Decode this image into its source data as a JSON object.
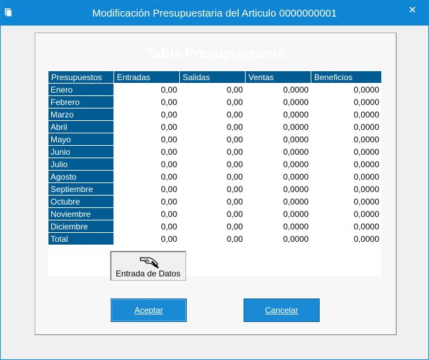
{
  "window": {
    "title": "Modificación Presupuestaria del Articulo 0000000001",
    "close_glyph": "✕",
    "accent_color": "#0e86d4"
  },
  "panel": {
    "title": "Tabla Presupuestaria"
  },
  "table": {
    "headers": [
      "Presupuestos",
      "Entradas",
      "Salidas",
      "Ventas",
      "Beneficios"
    ],
    "header_color": "#005c92",
    "rows": [
      {
        "label": "Enero",
        "entradas": "0,00",
        "salidas": "0,00",
        "ventas": "0,0000",
        "beneficios": "0,0000"
      },
      {
        "label": "Febrero",
        "entradas": "0,00",
        "salidas": "0,00",
        "ventas": "0,0000",
        "beneficios": "0,0000"
      },
      {
        "label": "Marzo",
        "entradas": "0,00",
        "salidas": "0,00",
        "ventas": "0,0000",
        "beneficios": "0,0000"
      },
      {
        "label": "Abril",
        "entradas": "0,00",
        "salidas": "0,00",
        "ventas": "0,0000",
        "beneficios": "0,0000"
      },
      {
        "label": "Mayo",
        "entradas": "0,00",
        "salidas": "0,00",
        "ventas": "0,0000",
        "beneficios": "0,0000"
      },
      {
        "label": "Junio",
        "entradas": "0,00",
        "salidas": "0,00",
        "ventas": "0,0000",
        "beneficios": "0,0000"
      },
      {
        "label": "Julio",
        "entradas": "0,00",
        "salidas": "0,00",
        "ventas": "0,0000",
        "beneficios": "0,0000"
      },
      {
        "label": "Agosto",
        "entradas": "0,00",
        "salidas": "0,00",
        "ventas": "0,0000",
        "beneficios": "0,0000"
      },
      {
        "label": "Septiembre",
        "entradas": "0,00",
        "salidas": "0,00",
        "ventas": "0,0000",
        "beneficios": "0,0000"
      },
      {
        "label": "Octubre",
        "entradas": "0,00",
        "salidas": "0,00",
        "ventas": "0,0000",
        "beneficios": "0,0000"
      },
      {
        "label": "Noviembre",
        "entradas": "0,00",
        "salidas": "0,00",
        "ventas": "0,0000",
        "beneficios": "0,0000"
      },
      {
        "label": "Diciembre",
        "entradas": "0,00",
        "salidas": "0,00",
        "ventas": "0,0000",
        "beneficios": "0,0000"
      },
      {
        "label": "Total",
        "entradas": "0,00",
        "salidas": "0,00",
        "ventas": "0,0000",
        "beneficios": "0,0000"
      }
    ]
  },
  "buttons": {
    "entrada_datos": {
      "label": "Entrada de Datos",
      "icon": "hand-writing-icon"
    },
    "aceptar": "Aceptar",
    "cancelar": "Cancelar"
  }
}
